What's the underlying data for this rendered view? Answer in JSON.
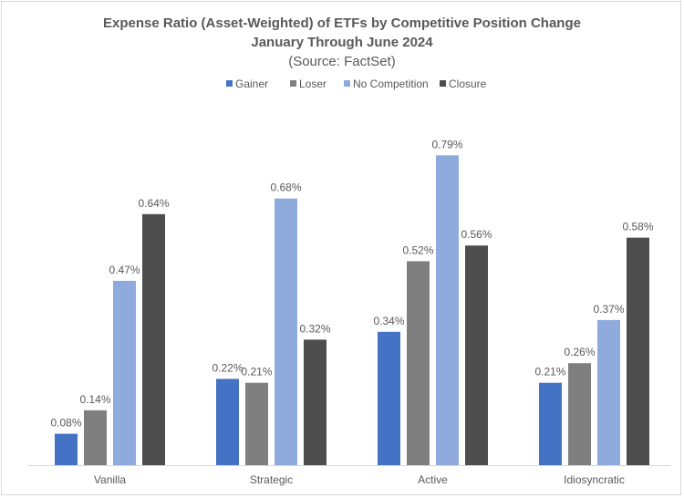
{
  "chart_data": {
    "type": "bar",
    "title": "Expense Ratio (Asset-Weighted) of ETFs by Competitive Position Change",
    "subtitle": "January Through June 2024",
    "source": "(Source: FactSet)",
    "categories": [
      "Vanilla",
      "Strategic",
      "Active",
      "Idiosyncratic"
    ],
    "series": [
      {
        "name": "Gainer",
        "color": "#4472c4",
        "values": [
          0.08,
          0.22,
          0.34,
          0.21
        ],
        "labels": [
          "0.08%",
          "0.22%",
          "0.34%",
          "0.21%"
        ]
      },
      {
        "name": "Loser",
        "color": "#7f7f7f",
        "values": [
          0.14,
          0.21,
          0.52,
          0.26
        ],
        "labels": [
          "0.14%",
          "0.21%",
          "0.52%",
          "0.26%"
        ]
      },
      {
        "name": "No Competition",
        "color": "#8faadc",
        "values": [
          0.47,
          0.68,
          0.79,
          0.37
        ],
        "labels": [
          "0.47%",
          "0.68%",
          "0.79%",
          "0.37%"
        ]
      },
      {
        "name": "Closure",
        "color": "#4d4d4d",
        "values": [
          0.64,
          0.32,
          0.56,
          0.58
        ],
        "labels": [
          "0.64%",
          "0.32%",
          "0.56%",
          "0.58%"
        ]
      }
    ],
    "xlabel": "",
    "ylabel": "",
    "ylim": [
      0,
      0.8
    ],
    "grid": false,
    "legend": "top-center"
  }
}
